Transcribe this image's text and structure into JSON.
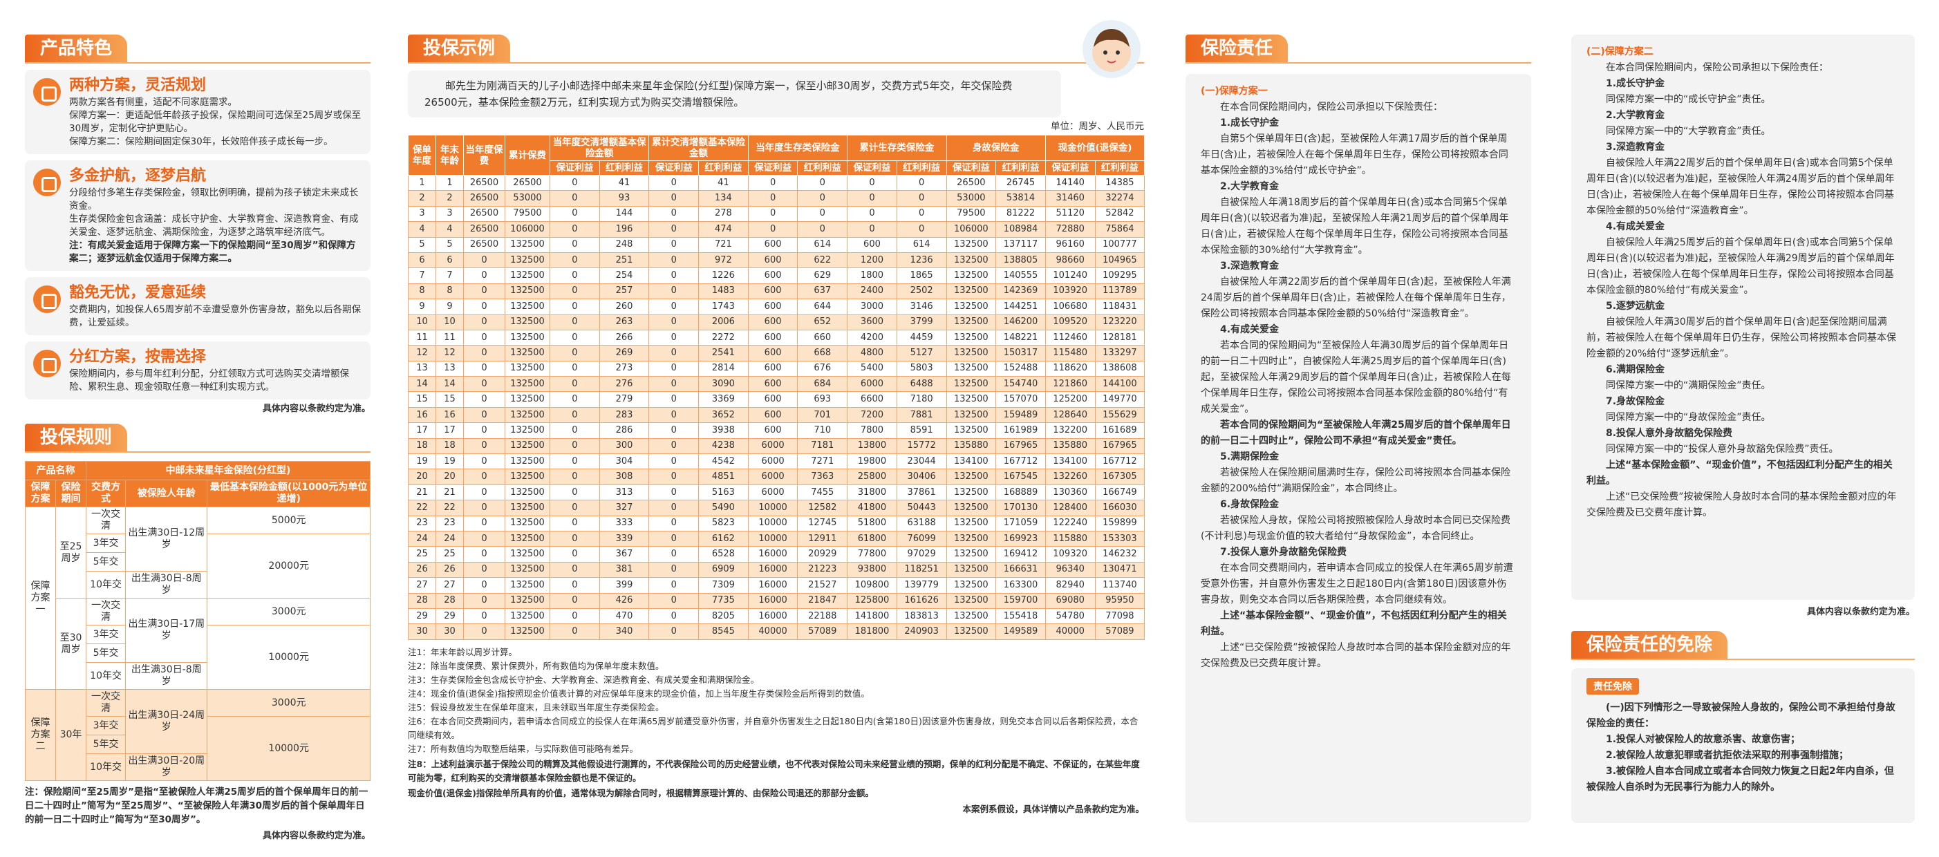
{
  "features": {
    "title": "产品特色",
    "items": [
      {
        "title": "两种方案，灵活规划",
        "body": [
          {
            "p": "两款方案各有侧重，适配不同家庭需求。"
          },
          {
            "p": "保障方案一：更适配低年龄孩子投保，保险期间可选保至25周岁或保至30周岁，定制化守护更贴心。"
          },
          {
            "p": "保障方案二：保险期间固定保30年，长效陪伴孩子成长每一步。"
          }
        ]
      },
      {
        "title": "多金护航，逐梦启航",
        "body": [
          {
            "p": "分段给付多笔生存类保险金，领取比例明确，提前为孩子锁定未来成长资金。"
          },
          {
            "p": "生存类保险金包含涵盖：成长守护金、大学教育金、深造教育金、有成关爱金、逐梦远航金、满期保险金，为逐梦之路筑牢经济底气。"
          },
          {
            "b": "注：有成关爱金适用于保障方案一下的保险期间“至30周岁”和保障方案二；逐梦远航金仅适用于保障方案二。"
          }
        ]
      },
      {
        "title": "豁免无忧，爱意延续",
        "body": [
          {
            "p": "交费期内，如投保人65周岁前不幸遭受意外伤害身故，豁免以后各期保费，让爱延续。"
          }
        ]
      },
      {
        "title": "分红方案，按需选择",
        "body": [
          {
            "p": "保险期间内，参与周年红利分配，分红领取方式可选购买交清增额保险、累积生息、现金领取任意一种红利实现方式。"
          }
        ]
      }
    ],
    "note": "具体内容以条款约定为准。"
  },
  "rules": {
    "title": "投保规则",
    "name_label": "产品名称",
    "name": "中邮未来星年金保险(分红型)",
    "headers": [
      "保障方案",
      "保险期间",
      "交费方式",
      "被保险人年龄",
      "最低基本保险金额(以1000元为单位递增)"
    ],
    "plans": [
      {
        "plan": "保障方案一",
        "periods": [
          {
            "period": "至25周岁",
            "modes": [
              "一次交清",
              "3年交",
              "5年交",
              "10年交"
            ],
            "ages": [
              "出生满30日-12周岁",
              "出生满30日-8周岁"
            ],
            "amounts": [
              "5000元",
              "20000元"
            ]
          },
          {
            "period": "至30周岁",
            "modes": [
              "一次交清",
              "3年交",
              "5年交",
              "10年交"
            ],
            "ages": [
              "出生满30日-17周岁",
              "出生满30日-8周岁"
            ],
            "amounts": [
              "3000元",
              "10000元"
            ]
          }
        ]
      },
      {
        "plan": "保障方案二",
        "periods": [
          {
            "period": "30年",
            "modes": [
              "一次交清",
              "3年交",
              "5年交",
              "10年交"
            ],
            "ages": [
              "出生满30日-24周岁",
              "出生满30日-20周岁"
            ],
            "amounts": [
              "3000元",
              "10000元"
            ]
          }
        ]
      }
    ],
    "note": "注：保险期间“至25周岁”是指“至被保险人年满25周岁后的首个保单周年日的前一日二十四时止”简写为“至25周岁”、“至被保险人年满30周岁后的首个保单周年日的前一日二十四时止”简写为“至30周岁”。",
    "footer": "具体内容以条款约定为准。"
  },
  "example": {
    "title": "投保示例",
    "intro": "邮先生为刚满百天的儿子小邮选择中邮未来星年金保险(分红型)保障方案一，保至小邮30周岁，交费方式5年交，年交保险费26500元，基本保险金额2万元，红利实现方式为购买交清增额保险。",
    "unit": "单位：周岁、人民币元",
    "table": {
      "headers": [
        {
          "label": "保单年度"
        },
        {
          "label": "年末年龄"
        },
        {
          "label": "当年度保费"
        },
        {
          "label": "累计保费"
        },
        {
          "label": "当年度交清增额基本保险金额",
          "sub": [
            "保证利益",
            "红利利益"
          ]
        },
        {
          "label": "累计交清增额基本保险金额",
          "sub": [
            "保证利益",
            "红利利益"
          ]
        },
        {
          "label": "当年度生存类保险金",
          "sub": [
            "保证利益",
            "红利利益"
          ]
        },
        {
          "label": "累计生存类保险金",
          "sub": [
            "保证利益",
            "红利利益"
          ]
        },
        {
          "label": "身故保险金",
          "sub": [
            "保证利益",
            "红利利益"
          ]
        },
        {
          "label": "现金价值(退保金)",
          "sub": [
            "保证利益",
            "红利利益"
          ]
        }
      ],
      "rows": [
        [
          1,
          1,
          26500,
          26500,
          0,
          41,
          0,
          41,
          0,
          0,
          0,
          0,
          26500,
          26745,
          14140,
          14385
        ],
        [
          2,
          2,
          26500,
          53000,
          0,
          93,
          0,
          134,
          0,
          0,
          0,
          0,
          53000,
          53814,
          31460,
          32274
        ],
        [
          3,
          3,
          26500,
          79500,
          0,
          144,
          0,
          278,
          0,
          0,
          0,
          0,
          79500,
          81222,
          51120,
          52842
        ],
        [
          4,
          4,
          26500,
          106000,
          0,
          196,
          0,
          474,
          0,
          0,
          0,
          0,
          106000,
          108984,
          72880,
          75864
        ],
        [
          5,
          5,
          26500,
          132500,
          0,
          248,
          0,
          721,
          600,
          614,
          600,
          614,
          132500,
          137117,
          96160,
          100777
        ],
        [
          6,
          6,
          0,
          132500,
          0,
          251,
          0,
          972,
          600,
          622,
          1200,
          1236,
          132500,
          138805,
          98660,
          104965
        ],
        [
          7,
          7,
          0,
          132500,
          0,
          254,
          0,
          1226,
          600,
          629,
          1800,
          1865,
          132500,
          140555,
          101240,
          109295
        ],
        [
          8,
          8,
          0,
          132500,
          0,
          257,
          0,
          1483,
          600,
          637,
          2400,
          2502,
          132500,
          142369,
          103920,
          113789
        ],
        [
          9,
          9,
          0,
          132500,
          0,
          260,
          0,
          1743,
          600,
          644,
          3000,
          3146,
          132500,
          144251,
          106680,
          118431
        ],
        [
          10,
          10,
          0,
          132500,
          0,
          263,
          0,
          2006,
          600,
          652,
          3600,
          3799,
          132500,
          146200,
          109520,
          123220
        ],
        [
          11,
          11,
          0,
          132500,
          0,
          266,
          0,
          2272,
          600,
          660,
          4200,
          4459,
          132500,
          148221,
          112460,
          128181
        ],
        [
          12,
          12,
          0,
          132500,
          0,
          269,
          0,
          2541,
          600,
          668,
          4800,
          5127,
          132500,
          150317,
          115480,
          133297
        ],
        [
          13,
          13,
          0,
          132500,
          0,
          273,
          0,
          2814,
          600,
          676,
          5400,
          5803,
          132500,
          152488,
          118620,
          138608
        ],
        [
          14,
          14,
          0,
          132500,
          0,
          276,
          0,
          3090,
          600,
          684,
          6000,
          6488,
          132500,
          154740,
          121860,
          144100
        ],
        [
          15,
          15,
          0,
          132500,
          0,
          279,
          0,
          3369,
          600,
          693,
          6600,
          7180,
          132500,
          157070,
          125200,
          149770
        ],
        [
          16,
          16,
          0,
          132500,
          0,
          283,
          0,
          3652,
          600,
          701,
          7200,
          7881,
          132500,
          159489,
          128640,
          155629
        ],
        [
          17,
          17,
          0,
          132500,
          0,
          286,
          0,
          3938,
          600,
          710,
          7800,
          8591,
          132500,
          161989,
          132200,
          161689
        ],
        [
          18,
          18,
          0,
          132500,
          0,
          300,
          0,
          4238,
          6000,
          7181,
          13800,
          15772,
          135880,
          167965,
          135880,
          167965
        ],
        [
          19,
          19,
          0,
          132500,
          0,
          304,
          0,
          4542,
          6000,
          7271,
          19800,
          23044,
          134100,
          167712,
          134100,
          167712
        ],
        [
          20,
          20,
          0,
          132500,
          0,
          308,
          0,
          4851,
          6000,
          7363,
          25800,
          30406,
          132500,
          167545,
          132260,
          167305
        ],
        [
          21,
          21,
          0,
          132500,
          0,
          313,
          0,
          5163,
          6000,
          7455,
          31800,
          37861,
          132500,
          168889,
          130360,
          166749
        ],
        [
          22,
          22,
          0,
          132500,
          0,
          327,
          0,
          5490,
          10000,
          12582,
          41800,
          50443,
          132500,
          170130,
          128400,
          166030
        ],
        [
          23,
          23,
          0,
          132500,
          0,
          333,
          0,
          5823,
          10000,
          12745,
          51800,
          63188,
          132500,
          171059,
          122240,
          159899
        ],
        [
          24,
          24,
          0,
          132500,
          0,
          339,
          0,
          6162,
          10000,
          12911,
          61800,
          76099,
          132500,
          169923,
          115880,
          153303
        ],
        [
          25,
          25,
          0,
          132500,
          0,
          367,
          0,
          6528,
          16000,
          20929,
          77800,
          97029,
          132500,
          169412,
          109320,
          146232
        ],
        [
          26,
          26,
          0,
          132500,
          0,
          381,
          0,
          6909,
          16000,
          21223,
          93800,
          118251,
          132500,
          166631,
          96340,
          130471
        ],
        [
          27,
          27,
          0,
          132500,
          0,
          399,
          0,
          7309,
          16000,
          21527,
          109800,
          139779,
          132500,
          163300,
          82940,
          113740
        ],
        [
          28,
          28,
          0,
          132500,
          0,
          426,
          0,
          7735,
          16000,
          21847,
          125800,
          161626,
          132500,
          159700,
          69080,
          95950
        ],
        [
          29,
          29,
          0,
          132500,
          0,
          470,
          0,
          8205,
          16000,
          22188,
          141800,
          183813,
          132500,
          155418,
          54780,
          77098
        ],
        [
          30,
          30,
          0,
          132500,
          0,
          340,
          0,
          8545,
          40000,
          57089,
          181800,
          240903,
          132500,
          149589,
          40000,
          57089
        ]
      ]
    },
    "notes": [
      {
        "p": "注1：年末年龄以周岁计算。"
      },
      {
        "p": "注2：除当年度保费、累计保费外，所有数值均为保单年度末数值。"
      },
      {
        "p": "注3：生存类保险金包含成长守护金、大学教育金、深造教育金、有成关爱金和满期保险金。"
      },
      {
        "p": "注4：现金价值(退保金)指按照现金价值表计算的对应保单年度末的现金价值，加上当年度生存类保险金后所得到的数值。"
      },
      {
        "p": "注5：假设身故发生在保单年度末，且未领取当年度生存类保险金。"
      },
      {
        "p": "注6：在本合同交费期间内，若申请本合同成立的投保人在年满65周岁前遭受意外伤害，并自意外伤害发生之日起180日内(含第180日)因该意外伤害身故，则免交本合同以后各期保险费，本合同继续有效。"
      },
      {
        "p": "注7：所有数值均为取整后结果，与实际数值可能略有差异。"
      },
      {
        "b": "注8：上述利益演示基于保险公司的精算及其他假设进行测算的，不代表保险公司的历史经营业绩，也不代表对保险公司未来经营业绩的预期，保单的红利分配是不确定、不保证的，在某些年度可能为零，红利购买的交清增额基本保险金额也是不保证的。"
      },
      {
        "b": "现金价值(退保金)指保险单所具有的价值，通常体现为解除合同时，根据精算原理计算的、由保险公司退还的那部分金额。"
      }
    ],
    "footer": "本案例系假设，具体详情以产品条款约定为准。"
  },
  "liability": {
    "title": "保险责任",
    "plan1": {
      "heading": "(一)保障方案一",
      "items": [
        {
          "p": "在本合同保险期间内，保险公司承担以下保险责任："
        },
        {
          "h": "1.成长守护金"
        },
        {
          "p": "自第5个保单周年日(含)起，至被保险人年满17周岁后的首个保单周年日(含)止，若被保险人在每个保单周年日生存，保险公司将按照本合同基本保险金额的3%给付“成长守护金”。"
        },
        {
          "h": "2.大学教育金"
        },
        {
          "p": "自被保险人年满18周岁后的首个保单周年日(含)或本合同第5个保单周年日(含)(以较迟者为准)起，至被保险人年满21周岁后的首个保单周年日(含)止，若被保险人在每个保单周年日生存，保险公司将按照本合同基本保险金额的30%给付“大学教育金”。"
        },
        {
          "h": "3.深造教育金"
        },
        {
          "p": "自被保险人年满22周岁后的首个保单周年日(含)起，至被保险人年满24周岁后的首个保单周年日(含)止，若被保险人在每个保单周年日生存，保险公司将按照本合同基本保险金额的50%给付“深造教育金”。"
        },
        {
          "h": "4.有成关爱金"
        },
        {
          "p": "若本合同的保险期间为“至被保险人年满30周岁后的首个保单周年日的前一日二十四时止”，自被保险人年满25周岁后的首个保单周年日(含)起，至被保险人年满29周岁后的首个保单周年日(含)止，若被保险人在每个保单周年日生存，保险公司将按照本合同基本保险金额的80%给付“有成关爱金”。"
        },
        {
          "b": "若本合同的保险期间为“至被保险人年满25周岁后的首个保单周年日的前一日二十四时止”，保险公司不承担“有成关爱金”责任。"
        },
        {
          "h": "5.满期保险金"
        },
        {
          "p": "若被保险人在保险期间届满时生存，保险公司将按照本合同基本保险金额的200%给付“满期保险金”，本合同终止。"
        },
        {
          "h": "6.身故保险金"
        },
        {
          "p": "若被保险人身故，保险公司将按照被保险人身故时本合同已交保险费(不计利息)与现金价值的较大者给付“身故保险金”，本合同终止。"
        },
        {
          "h": "7.投保人意外身故豁免保险费"
        },
        {
          "p": "在本合同交费期间内，若申请本合同成立的投保人在年满65周岁前遭受意外伤害，并自意外伤害发生之日起180日内(含第180日)因该意外伤害身故，则免交本合同以后各期保险费，本合同继续有效。"
        },
        {
          "b": "上述“基本保险金额”、“现金价值”，不包括因红利分配产生的相关利益。"
        },
        {
          "p": "上述“已交保险费”按被保险人身故时本合同的基本保险金额对应的年交保险费及已交费年度计算。"
        }
      ]
    },
    "plan2": {
      "heading": "(二)保障方案二",
      "items": [
        {
          "p": "在本合同保险期间内，保险公司承担以下保险责任："
        },
        {
          "h": "1.成长守护金"
        },
        {
          "p": "同保障方案一中的“成长守护金”责任。"
        },
        {
          "h": "2.大学教育金"
        },
        {
          "p": "同保障方案一中的“大学教育金”责任。"
        },
        {
          "h": "3.深造教育金"
        },
        {
          "p": "自被保险人年满22周岁后的首个保单周年日(含)或本合同第5个保单周年日(含)(以较迟者为准)起，至被保险人年满24周岁后的首个保单周年日(含)止，若被保险人在每个保单周年日生存，保险公司将按照本合同基本保险金额的50%给付“深造教育金”。"
        },
        {
          "h": "4.有成关爱金"
        },
        {
          "p": "自被保险人年满25周岁后的首个保单周年日(含)或本合同第5个保单周年日(含)(以较迟者为准)起，至被保险人年满29周岁后的首个保单周年日(含)止，若被保险人在每个保单周年日生存，保险公司将按照本合同基本保险金额的80%给付“有成关爱金”。"
        },
        {
          "h": "5.逐梦远航金"
        },
        {
          "p": "自被保险人年满30周岁后的首个保单周年日(含)起至保险期间届满前，若被保险人在每个保单周年日仍生存，保险公司将按照本合同基本保险金额的20%给付“逐梦远航金”。"
        },
        {
          "h": "6.满期保险金"
        },
        {
          "p": "同保障方案一中的“满期保险金”责任。"
        },
        {
          "h": "7.身故保险金"
        },
        {
          "p": "同保障方案一中的“身故保险金”责任。"
        },
        {
          "h": "8.投保人意外身故豁免保险费"
        },
        {
          "p": "同保障方案一中的“投保人意外身故豁免保险费”责任。"
        },
        {
          "b": "上述“基本保险金额”、“现金价值”，不包括因红利分配产生的相关利益。"
        },
        {
          "p": "上述“已交保险费”按被保险人身故时本合同的基本保险金额对应的年交保险费及已交费年度计算。"
        }
      ]
    },
    "footer": "具体内容以条款约定为准。"
  },
  "exemption": {
    "title": "保险责任的免除",
    "label": "责任免除",
    "items": [
      {
        "b": "(一)因下列情形之一导致被保险人身故的，保险公司不承担给付身故保险金的责任："
      },
      {
        "b": "1.投保人对被保险人的故意杀害、故意伤害；"
      },
      {
        "b": "2.被保险人故意犯罪或者抗拒依法采取的刑事强制措施；"
      },
      {
        "b": "3.被保险人自本合同成立或者本合同效力恢复之日起2年内自杀，但被保险人自杀时为无民事行为能力人的除外。"
      }
    ]
  }
}
